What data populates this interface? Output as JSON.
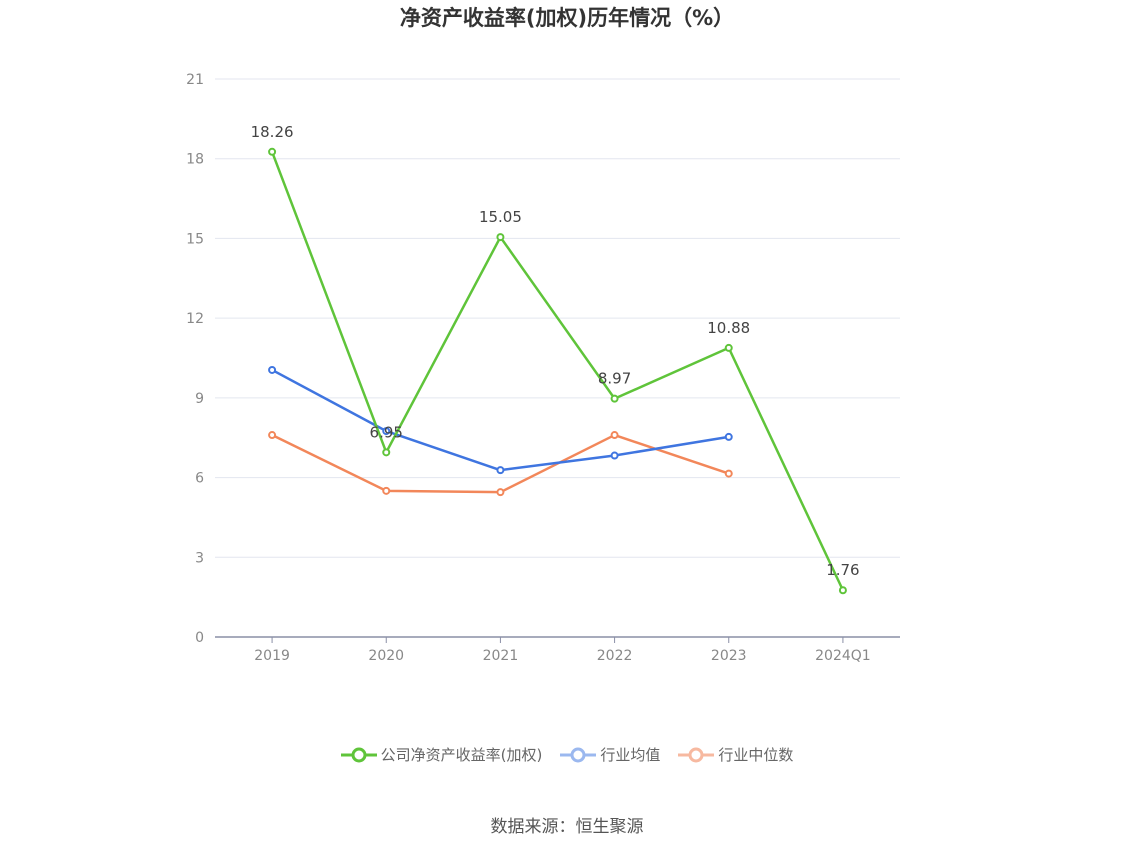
{
  "chart_data": {
    "type": "line",
    "title": "净资产收益率(加权)历年情况（%）",
    "categories": [
      "2019",
      "2020",
      "2021",
      "2022",
      "2023",
      "2024Q1"
    ],
    "yticks": [
      "0",
      "3",
      "6",
      "9",
      "12",
      "15",
      "18",
      "21"
    ],
    "ylim": [
      0,
      21
    ],
    "grid": true,
    "legend_position": "bottom",
    "series": [
      {
        "name": "公司净资产收益率(加权)",
        "color": "#5fc43a",
        "values": [
          18.26,
          6.95,
          15.05,
          8.97,
          10.88,
          1.76
        ],
        "labels": [
          "18.26",
          "6.95",
          "15.05",
          "8.97",
          "10.88",
          "1.76"
        ]
      },
      {
        "name": "行业均值",
        "color": "#3f75e0",
        "values": [
          10.05,
          7.75,
          6.28,
          6.83,
          7.53,
          null
        ]
      },
      {
        "name": "行业中位数",
        "color": "#f2875a",
        "values": [
          7.6,
          5.5,
          5.45,
          7.6,
          6.15,
          null
        ]
      }
    ]
  },
  "legend": {
    "items": [
      {
        "label": "公司净资产收益率(加权)",
        "color": "#5fc43a",
        "icon": "circle-line-icon"
      },
      {
        "label": "行业均值",
        "color": "#9bb8ef",
        "icon": "circle-line-icon"
      },
      {
        "label": "行业中位数",
        "color": "#f7b9a0",
        "icon": "circle-line-icon"
      }
    ]
  },
  "source": "数据来源：恒生聚源"
}
